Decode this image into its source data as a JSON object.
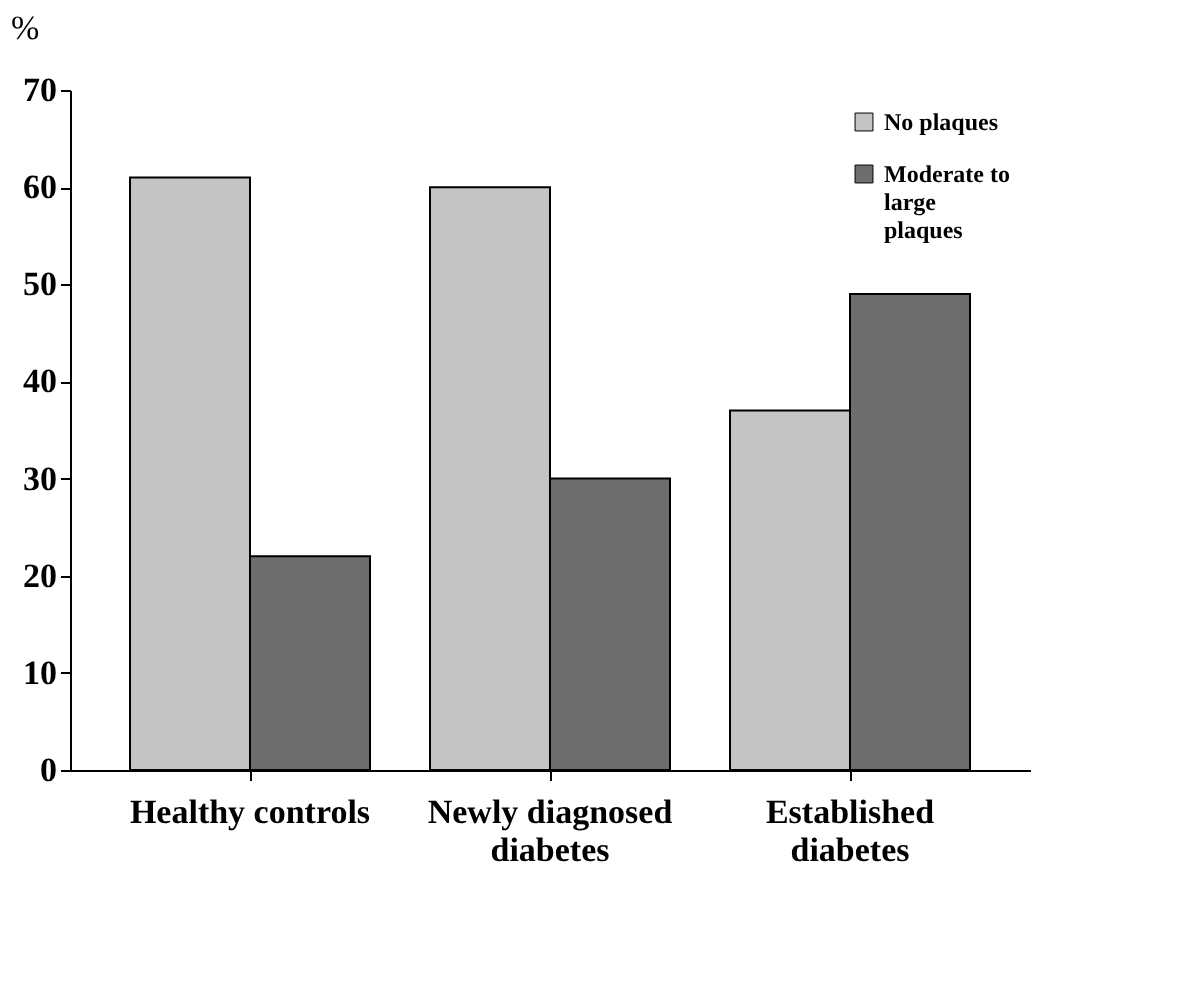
{
  "chart_data": {
    "type": "bar",
    "ylabel": "%",
    "categories": [
      "Healthy controls",
      "Newly diagnosed diabetes",
      "Established diabetes"
    ],
    "series": [
      {
        "name": "No plaques",
        "color": "#c4c4c4",
        "values": [
          61,
          60,
          37
        ]
      },
      {
        "name": "Moderate to large plaques",
        "color": "#6e6e6e",
        "values": [
          22,
          30,
          49
        ]
      }
    ],
    "ylim": [
      0,
      70
    ],
    "yticks": [
      0,
      10,
      20,
      30,
      40,
      50,
      60,
      70
    ],
    "grid": false,
    "legend": "top right"
  }
}
